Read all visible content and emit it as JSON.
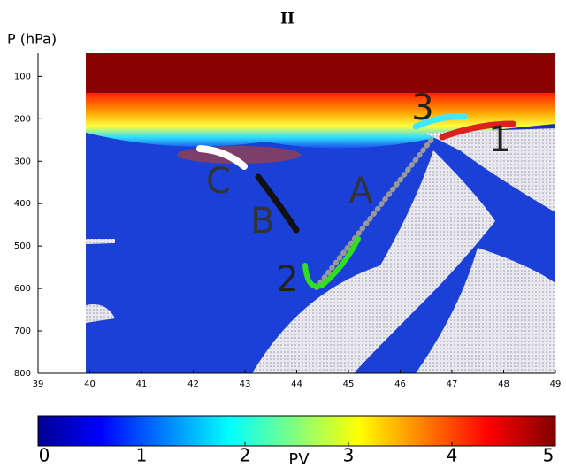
{
  "chart_data": {
    "type": "field",
    "title": "II",
    "ylabel": "P (hPa)",
    "xlim": [
      39,
      49
    ],
    "xticks": [
      39,
      40,
      41,
      42,
      43,
      44,
      45,
      46,
      47,
      48,
      49
    ],
    "ylim": [
      800,
      45
    ],
    "yticks": [
      100,
      200,
      300,
      400,
      500,
      600,
      700,
      800
    ],
    "annotations": [
      "1",
      "2",
      "3",
      "A",
      "B",
      "C"
    ],
    "colorbar": {
      "label": "PV",
      "lim": [
        0,
        5
      ],
      "ticks": [
        0,
        1,
        2,
        3,
        4,
        5
      ]
    }
  }
}
